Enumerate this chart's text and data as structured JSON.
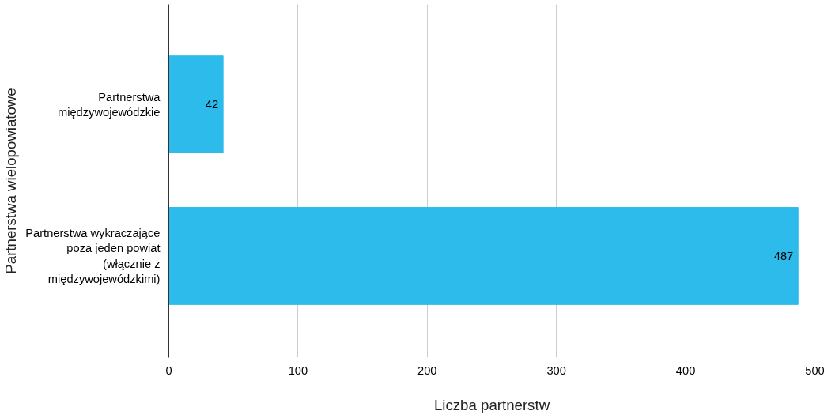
{
  "chart_data": {
    "type": "bar",
    "orientation": "horizontal",
    "categories": [
      "Partnerstwa międzywojewódzkie",
      "Partnerstwa wykraczające poza jeden powiat (włącznie z międzywojewódzkimi)"
    ],
    "values": [
      42,
      487
    ],
    "color": "#2cbbea",
    "xlabel": "Liczba partnerstw",
    "ylabel": "Partnerstwa wielopowiatowe",
    "xlim": [
      0,
      500
    ],
    "xticks": [
      0,
      100,
      200,
      300,
      400,
      500
    ],
    "grid": "x",
    "data_labels": true
  }
}
